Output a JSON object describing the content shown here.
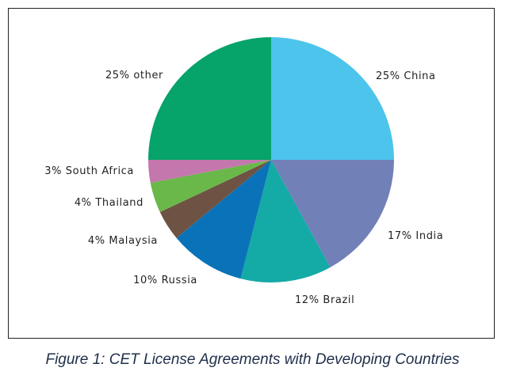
{
  "caption": "Figure 1: CET License Agreements with Developing Countries",
  "chart_data": {
    "type": "pie",
    "title": "",
    "slices": [
      {
        "label": "25% China",
        "value": 25,
        "color": "#4cc4ec"
      },
      {
        "label": "17% India",
        "value": 17,
        "color": "#7280b8"
      },
      {
        "label": "12% Brazil",
        "value": 12,
        "color": "#14aaa6"
      },
      {
        "label": "10% Russia",
        "value": 10,
        "color": "#0a72b8"
      },
      {
        "label": "4% Malaysia",
        "value": 4,
        "color": "#6e5344"
      },
      {
        "label": "4% Thailand",
        "value": 4,
        "color": "#6ab84a"
      },
      {
        "label": "3% South Africa",
        "value": 3,
        "color": "#c477ac"
      },
      {
        "label": "25% other",
        "value": 25,
        "color": "#06a36a"
      }
    ]
  }
}
